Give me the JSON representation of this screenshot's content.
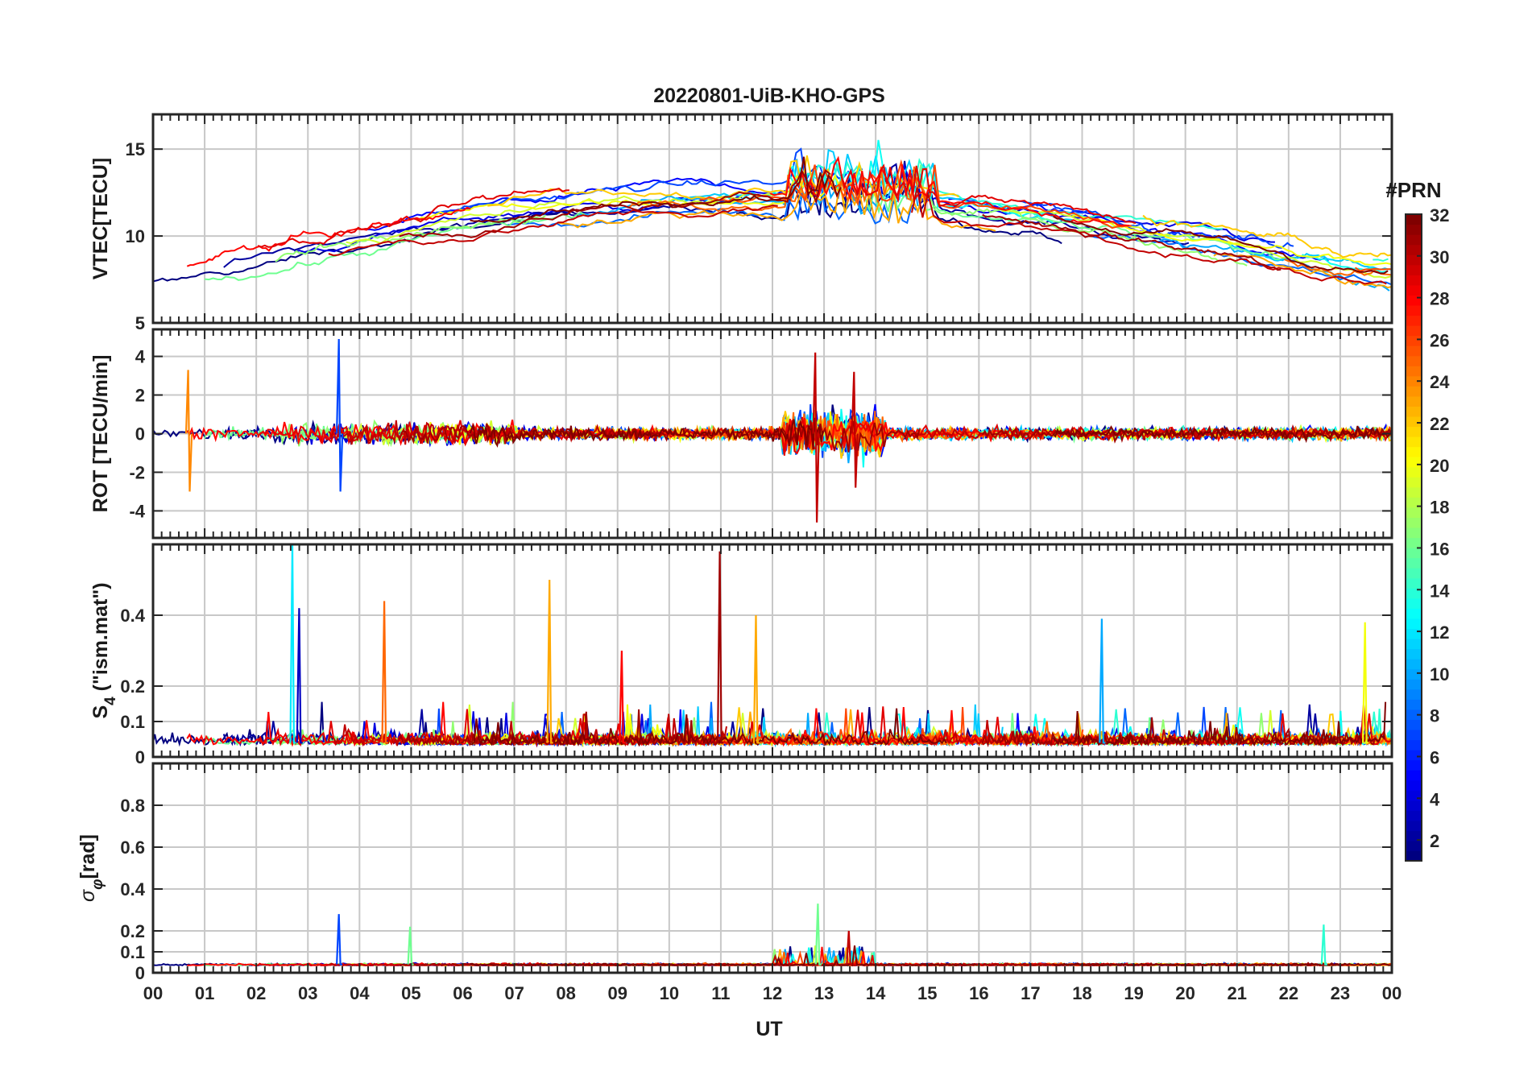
{
  "figure": {
    "title": "20220801-UiB-KHO-GPS",
    "xlabel": "UT"
  },
  "chart_data": [
    {
      "type": "line",
      "panel": "vtec",
      "ylabel": "VTEC[TECU]",
      "xlim": [
        0,
        24
      ],
      "ylim": [
        5,
        17
      ],
      "yticks": [
        5,
        10,
        15
      ],
      "xtick_labels": [
        "00",
        "01",
        "02",
        "03",
        "04",
        "05",
        "06",
        "07",
        "08",
        "09",
        "10",
        "11",
        "12",
        "13",
        "14",
        "15",
        "16",
        "17",
        "18",
        "19",
        "20",
        "21",
        "22",
        "23",
        "00"
      ],
      "grid": true,
      "series_note": "one line per GPS PRN (1-32), colored by PRN",
      "pattern": "rising from ~8 TECU at 00 UT to ~12-13 around 08-13 UT, peaks near 15-17 TECU at 13-15 UT, decreasing to ~9-10 TECU by 23 UT"
    },
    {
      "type": "line",
      "panel": "rot",
      "ylabel": "ROT [TECU/min]",
      "xlim": [
        0,
        24
      ],
      "ylim": [
        -5.4,
        5.4
      ],
      "yticks": [
        -4,
        -2,
        0,
        2,
        4
      ],
      "grid": true,
      "pattern": "fluctuations around 0, strongest near 12.5-13.5 UT (max ~4.2, min ~-4.6); spike ~5 near 03.6 UT (PRN ~7)"
    },
    {
      "type": "line",
      "panel": "s4",
      "ylabel": "S4 (\"ism.mat\")",
      "ylabel_main": "S",
      "ylabel_sub": "4",
      "ylabel_rest": " (\"ism.mat\")",
      "xlim": [
        0,
        24
      ],
      "ylim": [
        0,
        0.6
      ],
      "yticks": [
        0,
        0.1,
        0.2,
        0.4
      ],
      "ytick_labels": [
        "0",
        "0.1",
        "0.2",
        "0.4"
      ],
      "grid": true,
      "pattern": "baseline ~0.02-0.08, spikes: ~0.58 at 11 UT, ~0.6 at 02.7 UT, ~0.5 at 07.7 UT, ~0.44 at 04.5 UT, ~0.4 at 11.7 UT, ~0.39 at 18.4 UT, ~0.38 at 23.5 UT"
    },
    {
      "type": "line",
      "panel": "sigma_phi",
      "ylabel": "σφ[rad]",
      "ylabel_main": "σ",
      "ylabel_sub": "φ",
      "ylabel_rest": "[rad]",
      "xlim": [
        0,
        24
      ],
      "ylim": [
        0,
        1.0
      ],
      "yticks": [
        0,
        0.1,
        0.2,
        0.4,
        0.6,
        0.8
      ],
      "ytick_labels": [
        "0",
        "0.1",
        "0.2",
        "0.4",
        "0.6",
        "0.8"
      ],
      "grid": true,
      "pattern": "baseline ~0.03-0.06; spikes ~0.33 at 12.9 UT, ~0.28 at 03.6 UT, ~0.23 at 22.7 UT, ~0.22 at 05 UT, ~0.2 at 13.5 UT"
    }
  ],
  "colorbar": {
    "title": "#PRN",
    "range": [
      1,
      32
    ],
    "tick_labels": [
      "2",
      "4",
      "6",
      "8",
      "10",
      "12",
      "14",
      "16",
      "18",
      "20",
      "22",
      "24",
      "26",
      "28",
      "30",
      "32"
    ],
    "colormap": "jet"
  }
}
